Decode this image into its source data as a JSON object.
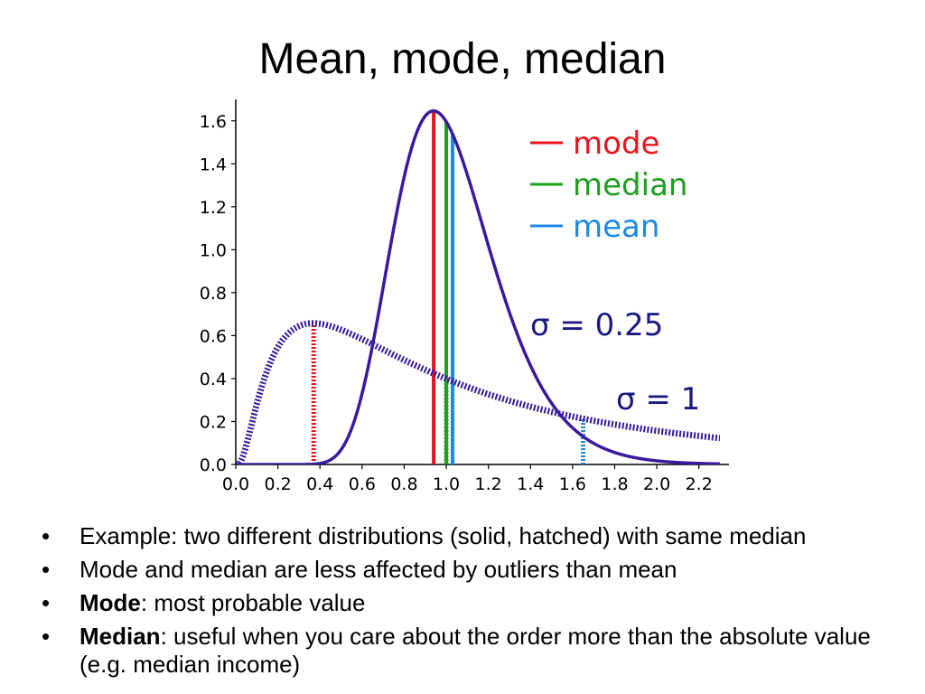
{
  "title": "Mean, mode, median",
  "chart_data": {
    "type": "line",
    "xlim": [
      0.0,
      2.3
    ],
    "ylim": [
      0.0,
      1.7
    ],
    "x_ticks": [
      "0.0",
      "0.2",
      "0.4",
      "0.6",
      "0.8",
      "1.0",
      "1.2",
      "1.4",
      "1.6",
      "1.8",
      "2.0",
      "2.2"
    ],
    "y_ticks": [
      "0.0",
      "0.2",
      "0.4",
      "0.6",
      "0.8",
      "1.0",
      "1.2",
      "1.4",
      "1.6"
    ],
    "grid": false,
    "legend_position": "top-right",
    "legend": [
      {
        "label": "mode",
        "color": "#e8141c"
      },
      {
        "label": "median",
        "color": "#1f9e1f"
      },
      {
        "label": "mean",
        "color": "#1e88e5"
      }
    ],
    "curve_color": "#3a1a9e",
    "series": [
      {
        "style": "solid",
        "label": "σ = 0.25",
        "sigma": 0.25,
        "median": 1.0,
        "mode": 0.94,
        "mean": 1.03,
        "peak": 1.65
      },
      {
        "style": "hatched",
        "label": "σ = 1",
        "sigma": 1,
        "median": 1.0,
        "mode": 0.37,
        "mean": 1.65,
        "peak": 0.66
      }
    ]
  },
  "bullets": [
    {
      "bold": "",
      "text": "Example: two different distributions (solid, hatched) with same median"
    },
    {
      "bold": "",
      "text": "Mode and median are less affected by outliers than mean"
    },
    {
      "bold": "Mode",
      "text": ": most probable value"
    },
    {
      "bold": "Median",
      "text": ": useful when you care about the order more than the absolute value (e.g. median income)"
    }
  ]
}
